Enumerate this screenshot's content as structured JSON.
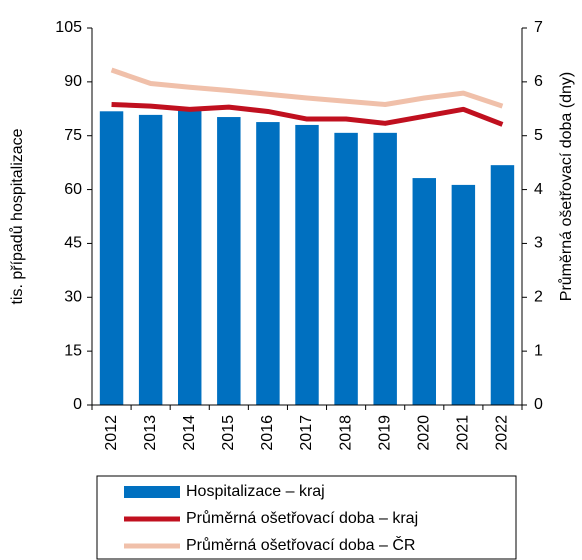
{
  "chart_data": {
    "type": "bar_line",
    "y_axis_label": "tis. případů hospitalizace",
    "y2_axis_label": "Průměrná ošetřovací doba (dny)",
    "categories": [
      "2012",
      "2013",
      "2014",
      "2015",
      "2016",
      "2017",
      "2018",
      "2019",
      "2020",
      "2021",
      "2022"
    ],
    "series": [
      {
        "name": "Hospitalizace – kraj",
        "type": "bar",
        "color": "#0070c0",
        "values": [
          81.8,
          80.8,
          82.7,
          80.2,
          78.8,
          78.0,
          75.8,
          75.8,
          63.2,
          61.3,
          66.8
        ]
      },
      {
        "name": "Průměrná ošetřovací doba – kraj",
        "type": "line",
        "axis": "y2",
        "color": "#c0101f",
        "values": [
          5.58,
          5.55,
          5.49,
          5.53,
          5.45,
          5.31,
          5.31,
          5.23,
          5.36,
          5.49,
          5.21
        ]
      },
      {
        "name": "Průměrná ošetřovací doba – ČR",
        "type": "line",
        "axis": "y2",
        "color": "#f0c0aa",
        "values": [
          6.22,
          5.97,
          5.9,
          5.84,
          5.77,
          5.7,
          5.64,
          5.58,
          5.7,
          5.79,
          5.55
        ]
      }
    ],
    "ylim": [
      0,
      105
    ],
    "yticks": [
      0,
      15,
      30,
      45,
      60,
      75,
      90,
      105
    ],
    "y2lim": [
      0,
      7
    ],
    "y2ticks": [
      0,
      1,
      2,
      3,
      4,
      5,
      6,
      7
    ]
  }
}
